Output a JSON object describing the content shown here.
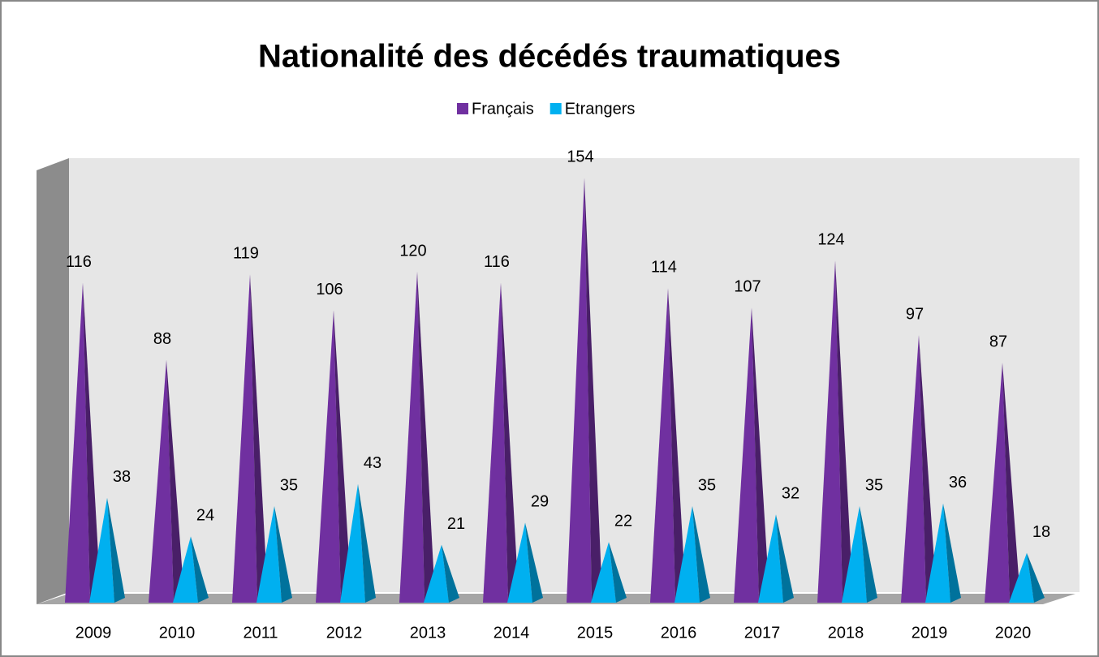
{
  "chart_data": {
    "type": "bar",
    "title": "Nationalité des décédés traumatiques",
    "categories": [
      "2009",
      "2010",
      "2011",
      "2012",
      "2013",
      "2014",
      "2015",
      "2016",
      "2017",
      "2018",
      "2019",
      "2020"
    ],
    "series": [
      {
        "name": "Français",
        "color": "#7030a0",
        "values": [
          116,
          88,
          119,
          106,
          120,
          116,
          154,
          114,
          107,
          124,
          97,
          87
        ]
      },
      {
        "name": "Etrangers",
        "color": "#00b0f0",
        "values": [
          38,
          24,
          35,
          43,
          21,
          29,
          22,
          35,
          32,
          35,
          36,
          18
        ]
      }
    ],
    "ylim": [
      0,
      160
    ]
  }
}
